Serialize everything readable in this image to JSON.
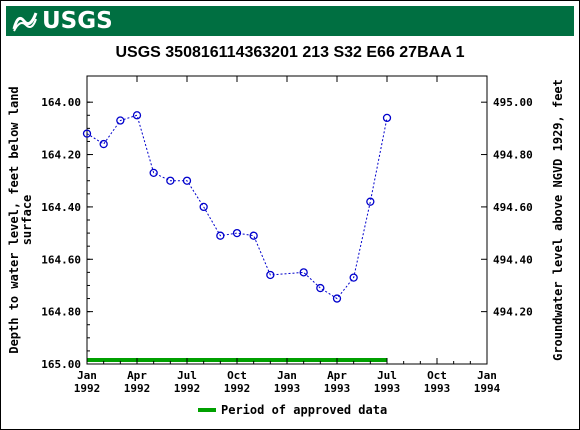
{
  "header": {
    "logo_text": "USGS"
  },
  "chart_data": {
    "type": "scatter",
    "title": "USGS 350816114363201 213  S32 E66 27BAA 1",
    "ylabel_left_line1": "Depth to water level, feet below land",
    "ylabel_left_line2": "surface",
    "ylabel_right": "Groundwater level above NGVD 1929, feet",
    "y_left_range": [
      165.0,
      163.9
    ],
    "y_left_ticks": [
      "164.00",
      "164.20",
      "164.40",
      "164.60",
      "164.80",
      "165.00"
    ],
    "y_left_tick_values": [
      164.0,
      164.2,
      164.4,
      164.6,
      164.8,
      165.0
    ],
    "y_right_ticks": [
      "495.00",
      "494.80",
      "494.60",
      "494.40",
      "494.20"
    ],
    "y_right_tick_values": [
      495.0,
      494.8,
      494.6,
      494.4,
      494.2
    ],
    "datum_offset": 659.0,
    "x_ticks": [
      {
        "line1": "Jan",
        "line2": "1992",
        "month": 0
      },
      {
        "line1": "Apr",
        "line2": "1992",
        "month": 3
      },
      {
        "line1": "Jul",
        "line2": "1992",
        "month": 6
      },
      {
        "line1": "Oct",
        "line2": "1992",
        "month": 9
      },
      {
        "line1": "Jan",
        "line2": "1993",
        "month": 12
      },
      {
        "line1": "Apr",
        "line2": "1993",
        "month": 15
      },
      {
        "line1": "Jul",
        "line2": "1993",
        "month": 18
      },
      {
        "line1": "Oct",
        "line2": "1993",
        "month": 21
      },
      {
        "line1": "Jan",
        "line2": "1994",
        "month": 24
      }
    ],
    "series": [
      {
        "points": [
          {
            "x": 0.0,
            "y": 164.12
          },
          {
            "x": 1.0,
            "y": 164.16
          },
          {
            "x": 2.0,
            "y": 164.07
          },
          {
            "x": 3.0,
            "y": 164.05
          },
          {
            "x": 4.0,
            "y": 164.27
          },
          {
            "x": 5.0,
            "y": 164.3
          },
          {
            "x": 6.0,
            "y": 164.3
          },
          {
            "x": 7.0,
            "y": 164.4
          },
          {
            "x": 8.0,
            "y": 164.51
          },
          {
            "x": 9.0,
            "y": 164.5
          },
          {
            "x": 10.0,
            "y": 164.51
          },
          {
            "x": 11.0,
            "y": 164.66
          },
          {
            "x": 13.0,
            "y": 164.65
          },
          {
            "x": 14.0,
            "y": 164.71
          },
          {
            "x": 15.0,
            "y": 164.75
          },
          {
            "x": 16.0,
            "y": 164.67
          },
          {
            "x": 17.0,
            "y": 164.38
          },
          {
            "x": 18.0,
            "y": 164.06
          }
        ],
        "color": "#0000cc"
      }
    ],
    "approved_period": {
      "start": 0.0,
      "end": 18.0,
      "color": "#00a000"
    },
    "legend": {
      "label": "Period of approved data",
      "placement": "bottom"
    },
    "grid": false
  }
}
